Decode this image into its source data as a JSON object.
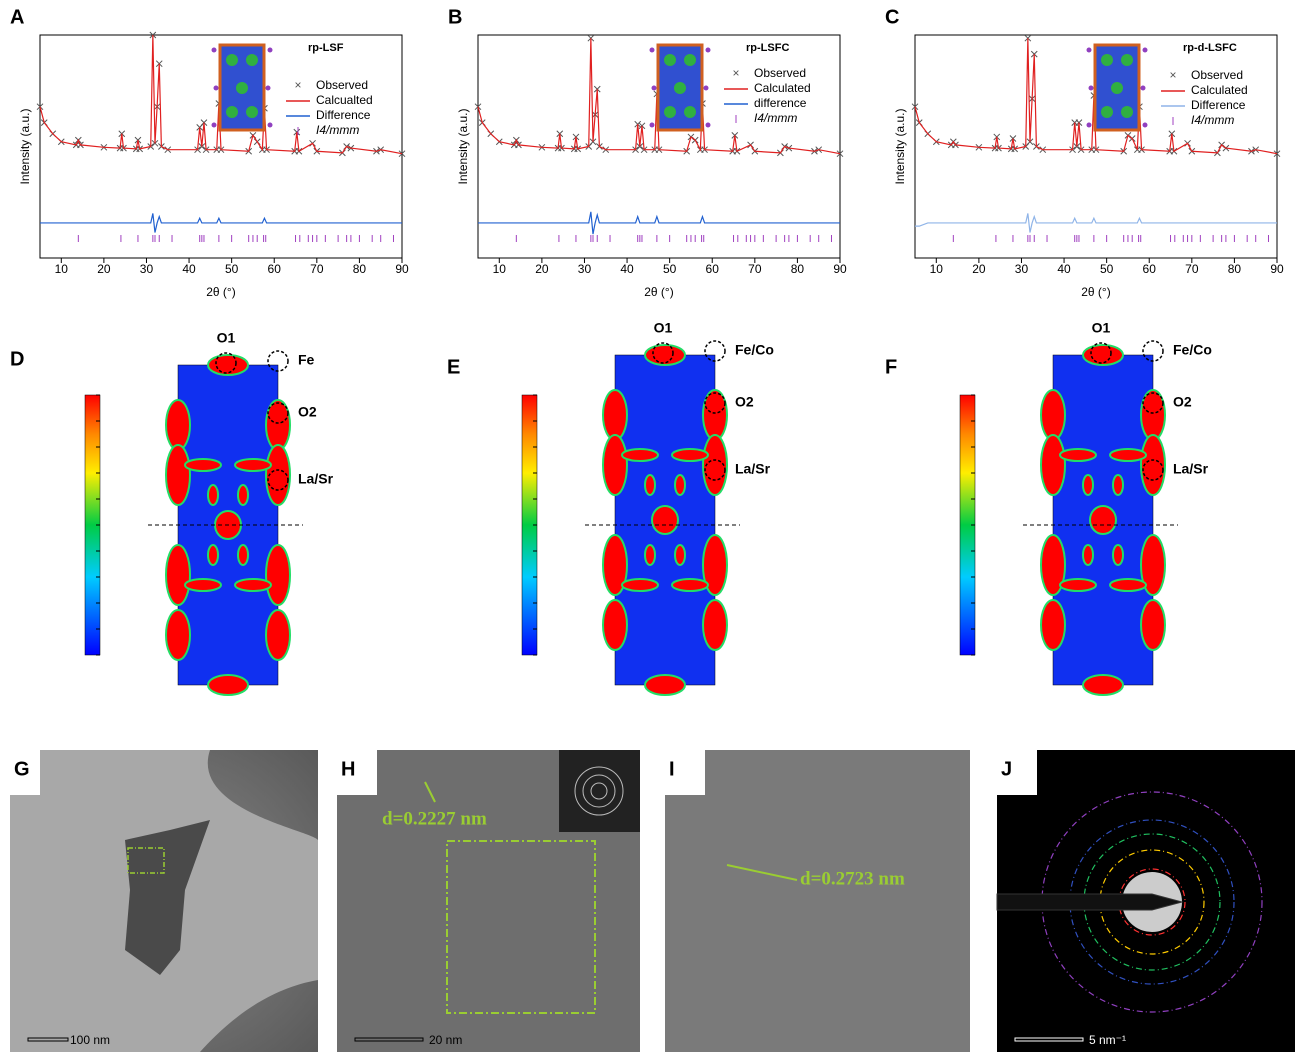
{
  "chart_data": [
    {
      "type": "line",
      "label": "A",
      "title": "rp-LSF",
      "x_label": "2θ (°)",
      "y_label": "Intensity (a.u.)",
      "x": [
        5,
        6,
        8,
        10,
        13.5,
        14,
        14.5,
        20,
        23.8,
        24.2,
        24.6,
        27.6,
        28,
        28.4,
        31,
        31.5,
        32,
        32.5,
        33,
        33.5,
        35,
        42,
        42.5,
        43,
        43.5,
        44,
        46.5,
        47,
        47.5,
        54,
        55,
        56,
        57.2,
        57.7,
        58.2,
        64.8,
        65.3,
        65.8,
        69,
        70,
        76,
        77,
        78,
        84,
        85,
        90
      ],
      "series": [
        {
          "name": "Observed",
          "color": "#555555",
          "values": [
            55,
            45,
            38,
            33,
            31,
            34,
            31,
            29.5,
            29,
            38,
            29,
            28.5,
            34,
            28.5,
            30,
            100,
            32,
            55,
            82,
            30,
            28,
            28,
            42,
            30,
            45,
            28,
            28,
            57,
            28,
            27,
            37,
            33,
            28,
            54,
            28,
            27,
            39,
            27,
            32,
            27,
            26,
            30,
            29,
            27,
            28,
            25.5
          ]
        },
        {
          "name": "Calcualted",
          "color": "#e02020",
          "values": [
            55,
            45,
            38,
            33,
            31,
            34,
            31,
            29.5,
            29,
            38,
            29,
            28.5,
            34,
            28.5,
            30,
            100,
            32,
            55,
            82,
            30,
            28,
            28,
            42,
            30,
            45,
            28,
            28,
            57,
            28,
            27,
            37,
            33,
            28,
            54,
            28,
            27,
            39,
            27,
            32,
            27,
            26,
            30,
            29,
            27,
            28,
            25.5
          ]
        },
        {
          "name": "Difference",
          "color": "#2060d0",
          "values": [
            -18,
            -18,
            -18,
            -18,
            -18,
            -18,
            -18,
            -18,
            -18,
            -18,
            -18,
            -18,
            -18,
            -18,
            -18,
            -12,
            -24,
            -18,
            -14,
            -18,
            -18,
            -18,
            -15,
            -18,
            -18,
            -18,
            -18,
            -15,
            -18,
            -18,
            -18,
            -18,
            -18,
            -15,
            -18,
            -18,
            -18,
            -18,
            -18,
            -18,
            -18,
            -18,
            -18,
            -18,
            -18,
            -18
          ]
        }
      ],
      "reflections": {
        "name": "I4/mmm",
        "color": "#a040c0",
        "x": [
          14,
          24,
          28,
          31.5,
          32,
          33,
          36,
          42.5,
          43,
          43.5,
          47,
          50,
          54,
          55,
          56,
          57.5,
          58,
          65,
          66,
          68,
          69,
          70,
          72,
          75,
          77,
          78,
          80,
          83,
          85,
          88
        ]
      },
      "xlim": [
        5,
        90
      ],
      "xticks": [
        10,
        20,
        30,
        40,
        50,
        60,
        70,
        80,
        90
      ],
      "ylim": [
        -40,
        100
      ]
    },
    {
      "type": "line",
      "label": "B",
      "title": "rp-LSFC",
      "x_label": "2θ (°)",
      "y_label": "Intensity (a.u.)",
      "x": [
        5,
        6,
        8,
        10,
        13.5,
        14,
        14.5,
        20,
        23.8,
        24.2,
        24.6,
        27.6,
        28,
        28.4,
        31,
        31.5,
        32,
        32.5,
        33,
        33.5,
        35,
        42,
        42.5,
        43,
        43.5,
        44,
        46.5,
        47,
        47.5,
        54,
        55,
        56,
        57.2,
        57.7,
        58.2,
        64.8,
        65.3,
        65.8,
        69,
        70,
        76,
        77,
        78,
        84,
        85,
        90
      ],
      "series": [
        {
          "name": "Observed",
          "color": "#555555",
          "values": [
            55,
            45,
            38,
            33,
            31,
            34,
            31,
            29.5,
            29,
            38,
            29,
            28.5,
            36,
            28.5,
            30,
            98,
            33,
            50,
            66,
            30,
            28,
            28,
            44,
            30,
            43,
            28,
            28,
            63,
            28,
            27,
            36,
            34,
            28,
            57,
            28,
            27,
            37,
            27,
            31,
            27,
            26,
            30,
            29,
            27,
            28,
            25.5
          ]
        },
        {
          "name": "Calculated",
          "color": "#e02020",
          "values": [
            55,
            45,
            38,
            33,
            31,
            34,
            31,
            29.5,
            29,
            38,
            29,
            28.5,
            36,
            28.5,
            30,
            98,
            33,
            50,
            66,
            30,
            28,
            28,
            44,
            30,
            43,
            28,
            28,
            63,
            28,
            27,
            36,
            34,
            28,
            57,
            28,
            27,
            37,
            27,
            31,
            27,
            26,
            30,
            29,
            27,
            28,
            25.5
          ]
        },
        {
          "name": "difference",
          "color": "#2060d0",
          "values": [
            -18,
            -18,
            -18,
            -18,
            -18,
            -18,
            -18,
            -18,
            -18,
            -18,
            -18,
            -18,
            -18,
            -18,
            -18,
            -11,
            -25,
            -18,
            -13,
            -18,
            -18,
            -18,
            -14,
            -18,
            -18,
            -18,
            -18,
            -14,
            -18,
            -18,
            -18,
            -18,
            -18,
            -14,
            -18,
            -18,
            -18,
            -18,
            -18,
            -18,
            -18,
            -18,
            -18,
            -18,
            -18,
            -18
          ]
        }
      ],
      "reflections": {
        "name": "I4/mmm",
        "color": "#a040c0",
        "x": [
          14,
          24,
          28,
          31.5,
          32,
          33,
          36,
          42.5,
          43,
          43.5,
          47,
          50,
          54,
          55,
          56,
          57.5,
          58,
          65,
          66,
          68,
          69,
          70,
          72,
          75,
          77,
          78,
          80,
          83,
          85,
          88
        ]
      },
      "xlim": [
        5,
        90
      ],
      "xticks": [
        10,
        20,
        30,
        40,
        50,
        60,
        70,
        80,
        90
      ],
      "ylim": [
        -40,
        100
      ]
    },
    {
      "type": "line",
      "label": "C",
      "title": "rp-d-LSFC",
      "x_label": "2θ (°)",
      "y_label": "Intensity (a.u.)",
      "x": [
        5,
        6,
        8,
        10,
        13.5,
        14,
        14.5,
        20,
        23.8,
        24.2,
        24.6,
        27.6,
        28,
        28.4,
        31,
        31.5,
        32,
        32.5,
        33,
        33.5,
        35,
        42,
        42.5,
        43,
        43.5,
        44,
        46.5,
        47,
        47.5,
        54,
        55,
        56,
        57.2,
        57.7,
        58.2,
        64.8,
        65.3,
        65.8,
        69,
        70,
        76,
        77,
        78,
        84,
        85,
        90
      ],
      "series": [
        {
          "name": "Observed",
          "color": "#555555",
          "values": [
            55,
            45,
            38,
            33,
            31,
            33,
            31,
            29.5,
            29,
            36,
            29,
            28.5,
            35,
            28.5,
            30,
            98,
            33,
            60,
            88,
            30,
            28,
            28,
            45,
            30,
            45,
            28,
            28,
            62,
            28,
            27,
            37,
            35,
            28,
            55,
            28,
            27,
            38,
            27,
            32,
            27,
            26,
            31,
            29,
            27,
            28,
            25.5
          ]
        },
        {
          "name": "Calculated",
          "color": "#e02020",
          "values": [
            55,
            45,
            38,
            33,
            31,
            33,
            31,
            29.5,
            29,
            36,
            29,
            28.5,
            35,
            28.5,
            30,
            98,
            33,
            60,
            88,
            30,
            28,
            28,
            45,
            30,
            45,
            28,
            28,
            62,
            28,
            27,
            37,
            35,
            28,
            55,
            28,
            27,
            38,
            27,
            32,
            27,
            26,
            31,
            29,
            27,
            28,
            25.5
          ]
        },
        {
          "name": "Difference",
          "color": "#8fb4e8",
          "values": [
            -20,
            -20,
            -18,
            -18,
            -18,
            -18,
            -18,
            -18,
            -18,
            -18,
            -18,
            -18,
            -18,
            -18,
            -18,
            -12,
            -24,
            -18,
            -14,
            -18,
            -18,
            -18,
            -15,
            -18,
            -18,
            -18,
            -18,
            -15,
            -18,
            -18,
            -18,
            -18,
            -18,
            -15,
            -18,
            -18,
            -18,
            -18,
            -18,
            -18,
            -18,
            -18,
            -18,
            -18,
            -18,
            -18
          ]
        }
      ],
      "reflections": {
        "name": "I4/mmm",
        "color": "#a040c0",
        "x": [
          14,
          24,
          28,
          31.5,
          32,
          33,
          36,
          42.5,
          43,
          43.5,
          47,
          50,
          54,
          55,
          56,
          57.5,
          58,
          65,
          66,
          68,
          69,
          70,
          72,
          75,
          77,
          78,
          80,
          83,
          85,
          88
        ]
      },
      "xlim": [
        5,
        90
      ],
      "xticks": [
        10,
        20,
        30,
        40,
        50,
        60,
        70,
        80,
        90
      ],
      "ylim": [
        -40,
        100
      ]
    }
  ],
  "maps": [
    {
      "label": "D",
      "sites": [
        "O1",
        "Fe",
        "O2",
        "La/Sr"
      ]
    },
    {
      "label": "E",
      "sites": [
        "O1",
        "Fe/Co",
        "O2",
        "La/Sr"
      ]
    },
    {
      "label": "F",
      "sites": [
        "O1",
        "Fe/Co",
        "O2",
        "La/Sr"
      ]
    }
  ],
  "micrographs": [
    {
      "label": "G",
      "scale_bar": "100 nm"
    },
    {
      "label": "H",
      "scale_bar": "20 nm",
      "annotation": "d=0.2227 nm"
    },
    {
      "label": "I",
      "annotation": "d=0.2723 nm"
    },
    {
      "label": "J",
      "scale_bar": "5 nm⁻¹"
    }
  ]
}
